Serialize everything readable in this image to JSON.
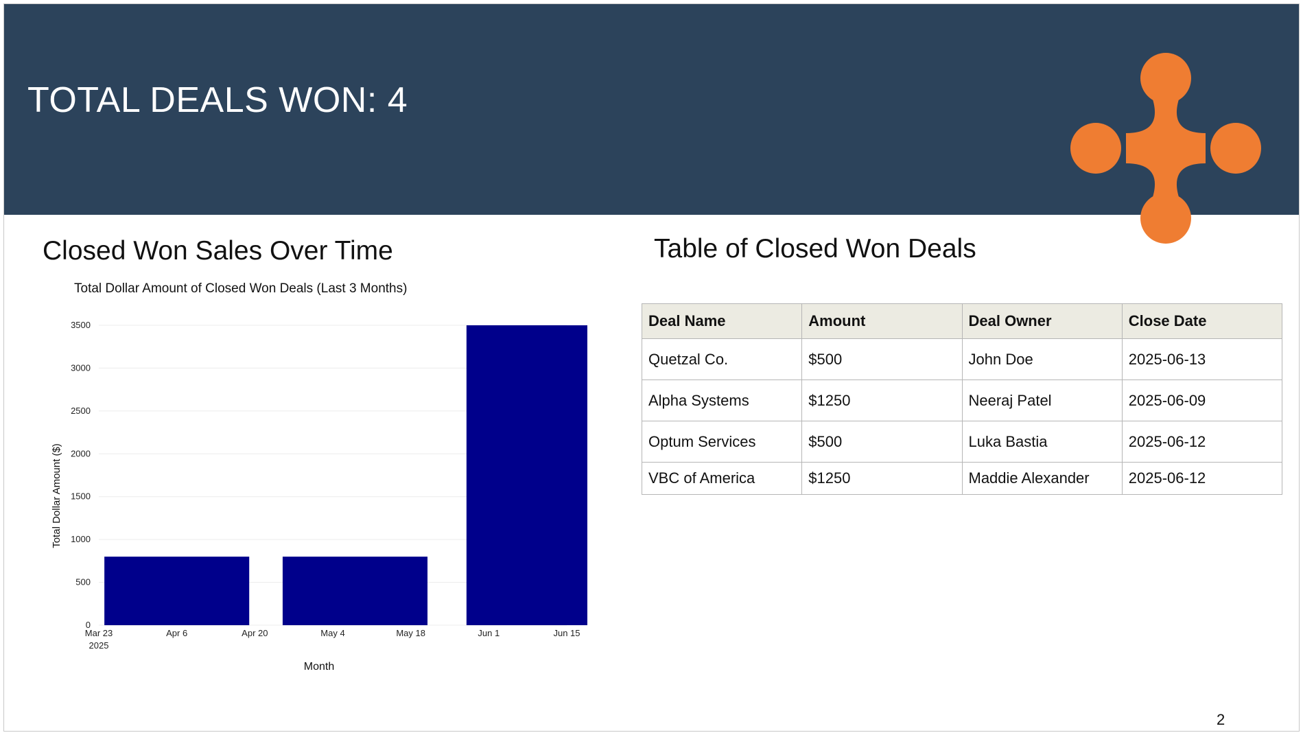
{
  "header": {
    "title": "TOTAL DEALS WON: 4",
    "background_color": "#2c435b",
    "logo_color": "#ef7d32",
    "logo_icon": "four-lobed-logo-icon"
  },
  "chart_section": {
    "title": "Closed Won Sales Over Time"
  },
  "chart_data": {
    "type": "bar",
    "title": "Total Dollar Amount of Closed Won Deals (Last 3 Months)",
    "xlabel": "Month",
    "ylabel": "Total Dollar Amount ($)",
    "bar_color": "#00008b",
    "x_ticks": [
      {
        "label": "Mar 23",
        "sublabel": "2025",
        "date": "2025-03-23"
      },
      {
        "label": "Apr 6",
        "sublabel": "",
        "date": "2025-04-06"
      },
      {
        "label": "Apr 20",
        "sublabel": "",
        "date": "2025-04-20"
      },
      {
        "label": "May 4",
        "sublabel": "",
        "date": "2025-05-04"
      },
      {
        "label": "May 18",
        "sublabel": "",
        "date": "2025-05-18"
      },
      {
        "label": "Jun 1",
        "sublabel": "",
        "date": "2025-06-01"
      },
      {
        "label": "Jun 15",
        "sublabel": "",
        "date": "2025-06-15"
      }
    ],
    "xlim": [
      "2025-03-23",
      "2025-06-15"
    ],
    "bars": [
      {
        "start": "2025-03-24",
        "end": "2025-04-19",
        "value": 800
      },
      {
        "start": "2025-04-25",
        "end": "2025-05-21",
        "value": 800
      },
      {
        "start": "2025-05-28",
        "end": "2025-06-23",
        "value": 3500
      }
    ],
    "y_ticks": [
      0,
      500,
      1000,
      1500,
      2000,
      2500,
      3000,
      3500
    ],
    "ylim": [
      0,
      3500
    ],
    "grid": true
  },
  "table_section": {
    "title": "Table of Closed Won Deals",
    "columns": [
      "Deal Name",
      "Amount",
      "Deal Owner",
      "Close Date"
    ],
    "rows": [
      [
        "Quetzal Co.",
        "$500",
        "John Doe",
        "2025-06-13"
      ],
      [
        "Alpha Systems",
        "$1250",
        "Neeraj Patel",
        "2025-06-09"
      ],
      [
        "Optum Services",
        "$500",
        "Luka Bastia",
        "2025-06-12"
      ],
      [
        "VBC of America",
        "$1250",
        "Maddie Alexander",
        "2025-06-12"
      ]
    ]
  },
  "footer": {
    "page_number": "2"
  }
}
